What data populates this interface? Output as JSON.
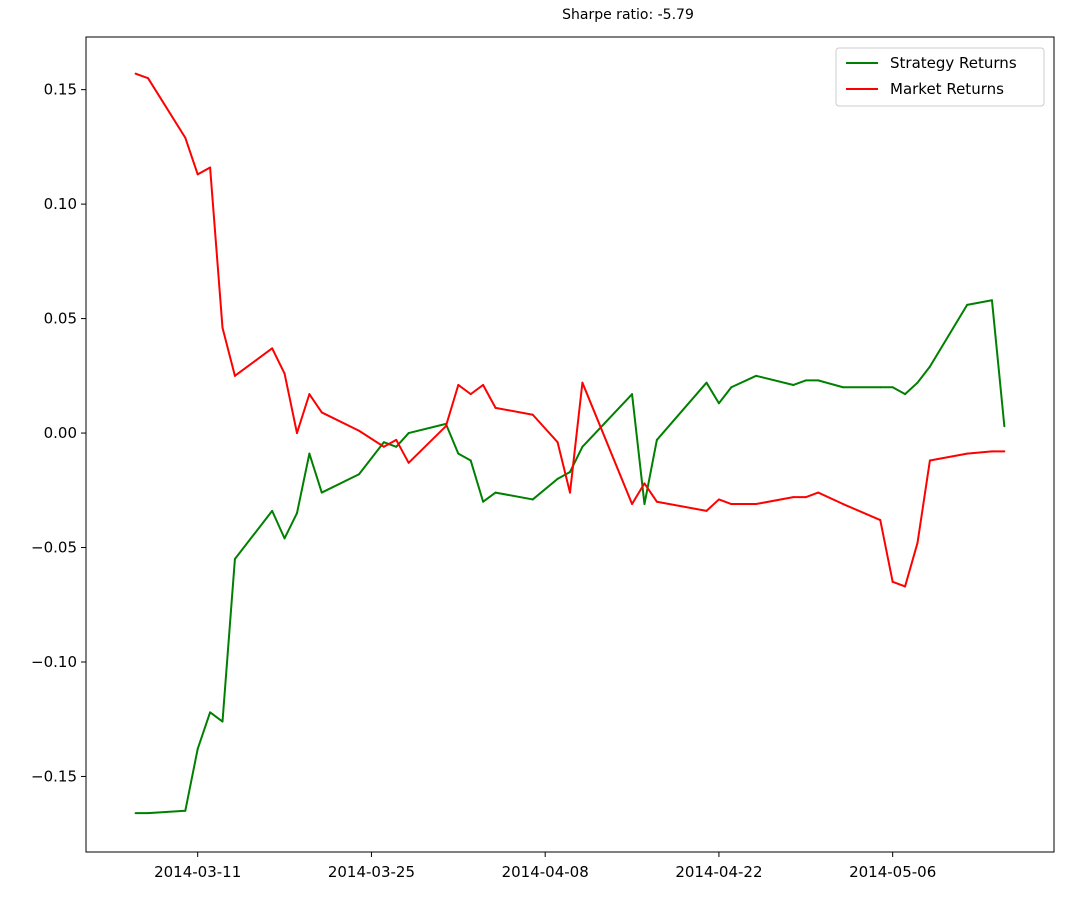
{
  "chart_data": {
    "type": "line",
    "title": "Sharpe ratio: -5.79",
    "xlabel": "",
    "ylabel": "",
    "x_type": "date",
    "xlim": [
      "2014-03-02",
      "2014-05-19"
    ],
    "ylim": [
      -0.183,
      0.173
    ],
    "x_ticks": [
      "2014-03-11",
      "2014-03-25",
      "2014-04-08",
      "2014-04-22",
      "2014-05-06"
    ],
    "y_ticks": [
      -0.15,
      -0.1,
      -0.05,
      0.0,
      0.05,
      0.1,
      0.15
    ],
    "y_tick_labels": [
      "−0.15",
      "−0.10",
      "−0.05",
      "0.00",
      "0.05",
      "0.10",
      "0.15"
    ],
    "grid": false,
    "legend": "top-right",
    "x": [
      "2014-03-06",
      "2014-03-07",
      "2014-03-10",
      "2014-03-11",
      "2014-03-12",
      "2014-03-13",
      "2014-03-14",
      "2014-03-17",
      "2014-03-18",
      "2014-03-19",
      "2014-03-20",
      "2014-03-21",
      "2014-03-24",
      "2014-03-26",
      "2014-03-27",
      "2014-03-28",
      "2014-03-31",
      "2014-04-01",
      "2014-04-02",
      "2014-04-03",
      "2014-04-04",
      "2014-04-07",
      "2014-04-09",
      "2014-04-10",
      "2014-04-11",
      "2014-04-15",
      "2014-04-16",
      "2014-04-17",
      "2014-04-21",
      "2014-04-22",
      "2014-04-23",
      "2014-04-25",
      "2014-04-28",
      "2014-04-29",
      "2014-04-30",
      "2014-05-02",
      "2014-05-05",
      "2014-05-06",
      "2014-05-07",
      "2014-05-08",
      "2014-05-09",
      "2014-05-12",
      "2014-05-14",
      "2014-05-15"
    ],
    "series": [
      {
        "name": "Strategy Returns",
        "color": "#008000",
        "values": [
          -0.166,
          -0.166,
          -0.165,
          -0.138,
          -0.122,
          -0.126,
          -0.055,
          -0.034,
          -0.046,
          -0.035,
          -0.009,
          -0.026,
          -0.018,
          -0.004,
          -0.006,
          0.0,
          0.004,
          -0.009,
          -0.012,
          -0.03,
          -0.026,
          -0.029,
          -0.02,
          -0.017,
          -0.006,
          0.017,
          -0.031,
          -0.003,
          0.022,
          0.013,
          0.02,
          0.025,
          0.021,
          0.023,
          0.023,
          0.02,
          0.02,
          0.02,
          0.017,
          0.022,
          0.029,
          0.056,
          0.058,
          0.003
        ]
      },
      {
        "name": "Market Returns",
        "color": "#ff0000",
        "values": [
          0.157,
          0.155,
          0.129,
          0.113,
          0.116,
          0.046,
          0.025,
          0.037,
          0.026,
          0.0,
          0.017,
          0.009,
          0.001,
          -0.006,
          -0.003,
          -0.013,
          0.003,
          0.021,
          0.017,
          0.021,
          0.011,
          0.008,
          -0.004,
          -0.026,
          0.022,
          -0.031,
          -0.022,
          -0.03,
          -0.034,
          -0.029,
          -0.031,
          -0.031,
          -0.028,
          -0.028,
          -0.026,
          -0.031,
          -0.038,
          -0.065,
          -0.067,
          -0.048,
          -0.012,
          -0.009,
          -0.008,
          -0.008
        ]
      }
    ]
  }
}
